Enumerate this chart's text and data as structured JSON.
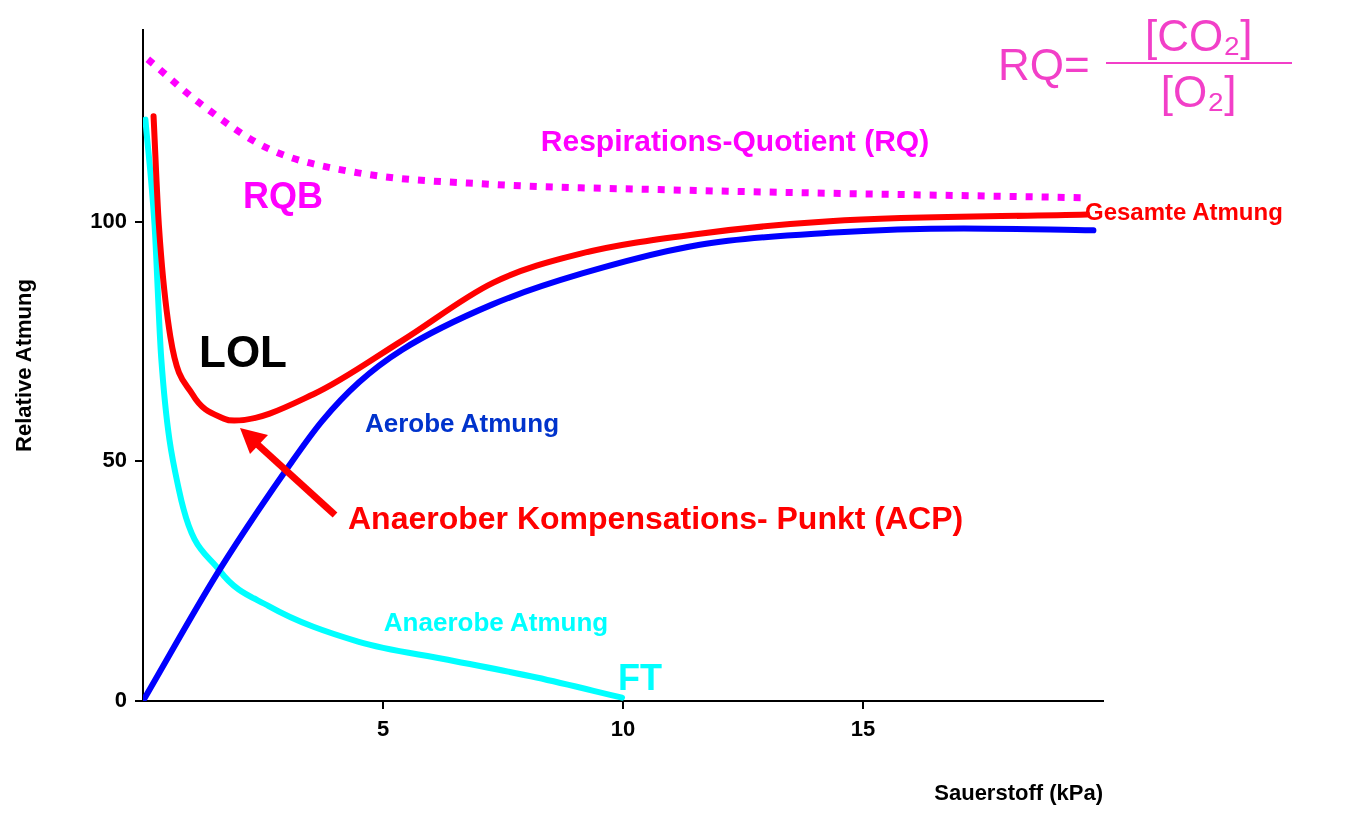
{
  "chart_data": {
    "type": "line",
    "xlabel": "Sauerstoff (kPa)",
    "ylabel": "Relative Atmung",
    "xlim": [
      0,
      20
    ],
    "ylim": [
      0,
      140
    ],
    "xticks": [
      5,
      10,
      15
    ],
    "yticks": [
      0,
      50,
      100
    ],
    "legend": false,
    "marker": "none",
    "line_style": "solid",
    "series": [
      {
        "color": "#ff00ff",
        "line_style": "dotted",
        "x": [
          0.1,
          1.2,
          2.6,
          4.48,
          7.27,
          10.75,
          19.56
        ],
        "values": [
          133.9,
          124.6,
          115.3,
          110.2,
          107.8,
          106.7,
          105
        ]
      },
      {
        "color": "#ff0000",
        "x": [
          0.22,
          0.33,
          0.57,
          1.03,
          1.69,
          1.9,
          3.55,
          5.4,
          7.3,
          9.1,
          11.6,
          14.3,
          19.67
        ],
        "values": [
          122,
          99.4,
          76,
          64,
          58.9,
          58.5,
          64,
          75.2,
          87.3,
          93.3,
          97.5,
          100.1,
          101.5
        ]
      },
      {
        "color": "#0000ff",
        "x": [
          0,
          1.59,
          3.08,
          3.73,
          4.5,
          5.4,
          7.27,
          9.15,
          11.6,
          14.3,
          17.1,
          19.8
        ],
        "values": [
          0,
          27.3,
          49.6,
          58.4,
          66.5,
          73.3,
          82.7,
          89.2,
          95.2,
          97.7,
          98.6,
          98.2
        ]
      },
      {
        "color": "#00ffff",
        "x": [
          0.05,
          0.24,
          0.38,
          0.75,
          1.59,
          2.62,
          4.48,
          6.35,
          8.2,
          9.98
        ],
        "values": [
          121.3,
          99.4,
          71.5,
          44,
          27.3,
          19.8,
          12.4,
          8.6,
          4.9,
          0.7
        ]
      }
    ],
    "annotations": [
      "Respirations-Quotient (RQ)",
      "RQB",
      "Gesamte Atmung",
      "LOL",
      "Aerobe Atmung",
      "Anaerober Kompensations- Punkt (ACP)",
      "Anaerobe Atmung",
      "FT",
      "RQ=",
      "[CO₂]",
      "[O₂]"
    ]
  }
}
